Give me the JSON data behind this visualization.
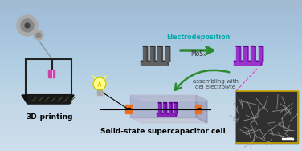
{
  "bg_color": "#c5d8e8",
  "title_text": "Solid-state supercapacitor cell",
  "electrodeposition_text": "Electrodeposition",
  "mosx_text": "MoSₓ",
  "assembling_text": "assembling with\ngel electrolyte",
  "printing_text": "3D-printing",
  "electrodeposition_color": "#00aaaa",
  "arrow_color": "#2d8a2d",
  "title_color": "#000000",
  "electrode_dark_color": "#606060",
  "electrode_purple_color": "#9933cc",
  "supercap_base_color": "#9999bb",
  "orange_connector": "#e87020",
  "sem_bg": "#303030",
  "frame_color": "#222222",
  "spool_color": "#aaaaaa",
  "bulb_color": "#ffff88"
}
